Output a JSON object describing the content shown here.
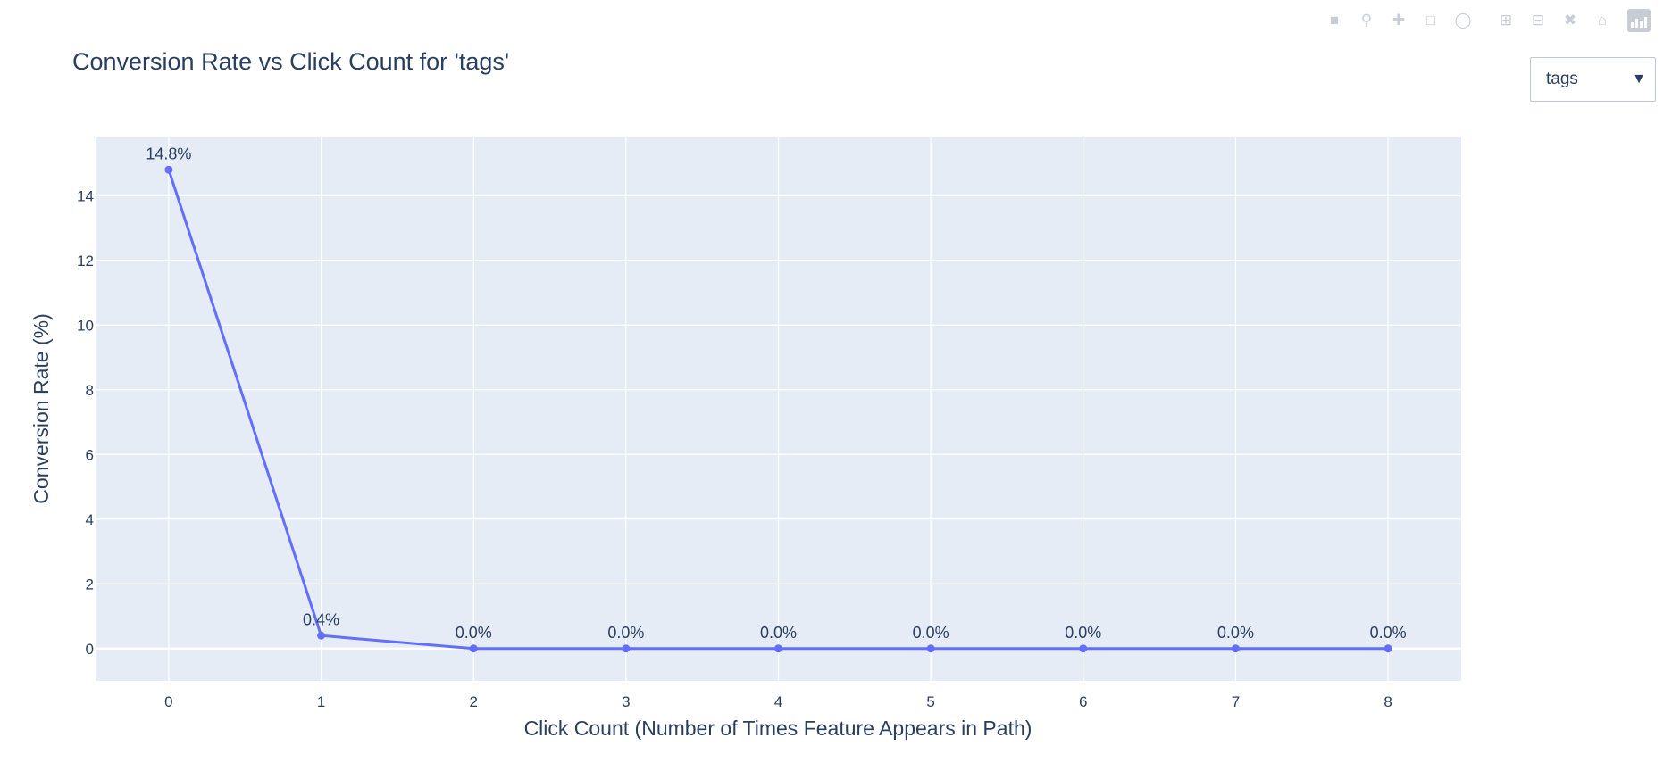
{
  "toolbar": {
    "icons": [
      "camera-icon",
      "zoom-icon",
      "pan-icon",
      "box-select-icon",
      "lasso-select-icon",
      "zoom-in-icon",
      "zoom-out-icon",
      "autoscale-icon",
      "reset-axes-icon",
      "plotly-logo-icon"
    ]
  },
  "dropdown": {
    "selected": "tags",
    "arrow": "▼"
  },
  "chart_data": {
    "type": "line",
    "title": "Conversion Rate vs Click Count for 'tags'",
    "xlabel": "Click Count (Number of Times Feature Appears in Path)",
    "ylabel": "Conversion Rate (%)",
    "x": [
      0,
      1,
      2,
      3,
      4,
      5,
      6,
      7,
      8
    ],
    "y": [
      14.8,
      0.4,
      0.0,
      0.0,
      0.0,
      0.0,
      0.0,
      0.0,
      0.0
    ],
    "data_labels": [
      "14.8%",
      "0.4%",
      "0.0%",
      "0.0%",
      "0.0%",
      "0.0%",
      "0.0%",
      "0.0%",
      "0.0%"
    ],
    "xlim": [
      -0.48,
      8.48
    ],
    "ylim": [
      -1.0,
      15.8
    ],
    "x_ticks": [
      0,
      1,
      2,
      3,
      4,
      5,
      6,
      7,
      8
    ],
    "y_ticks": [
      0,
      2,
      4,
      6,
      8,
      10,
      12,
      14
    ],
    "grid": true,
    "line_color": "#636efa",
    "plot_bg": "#e5ecf6"
  }
}
